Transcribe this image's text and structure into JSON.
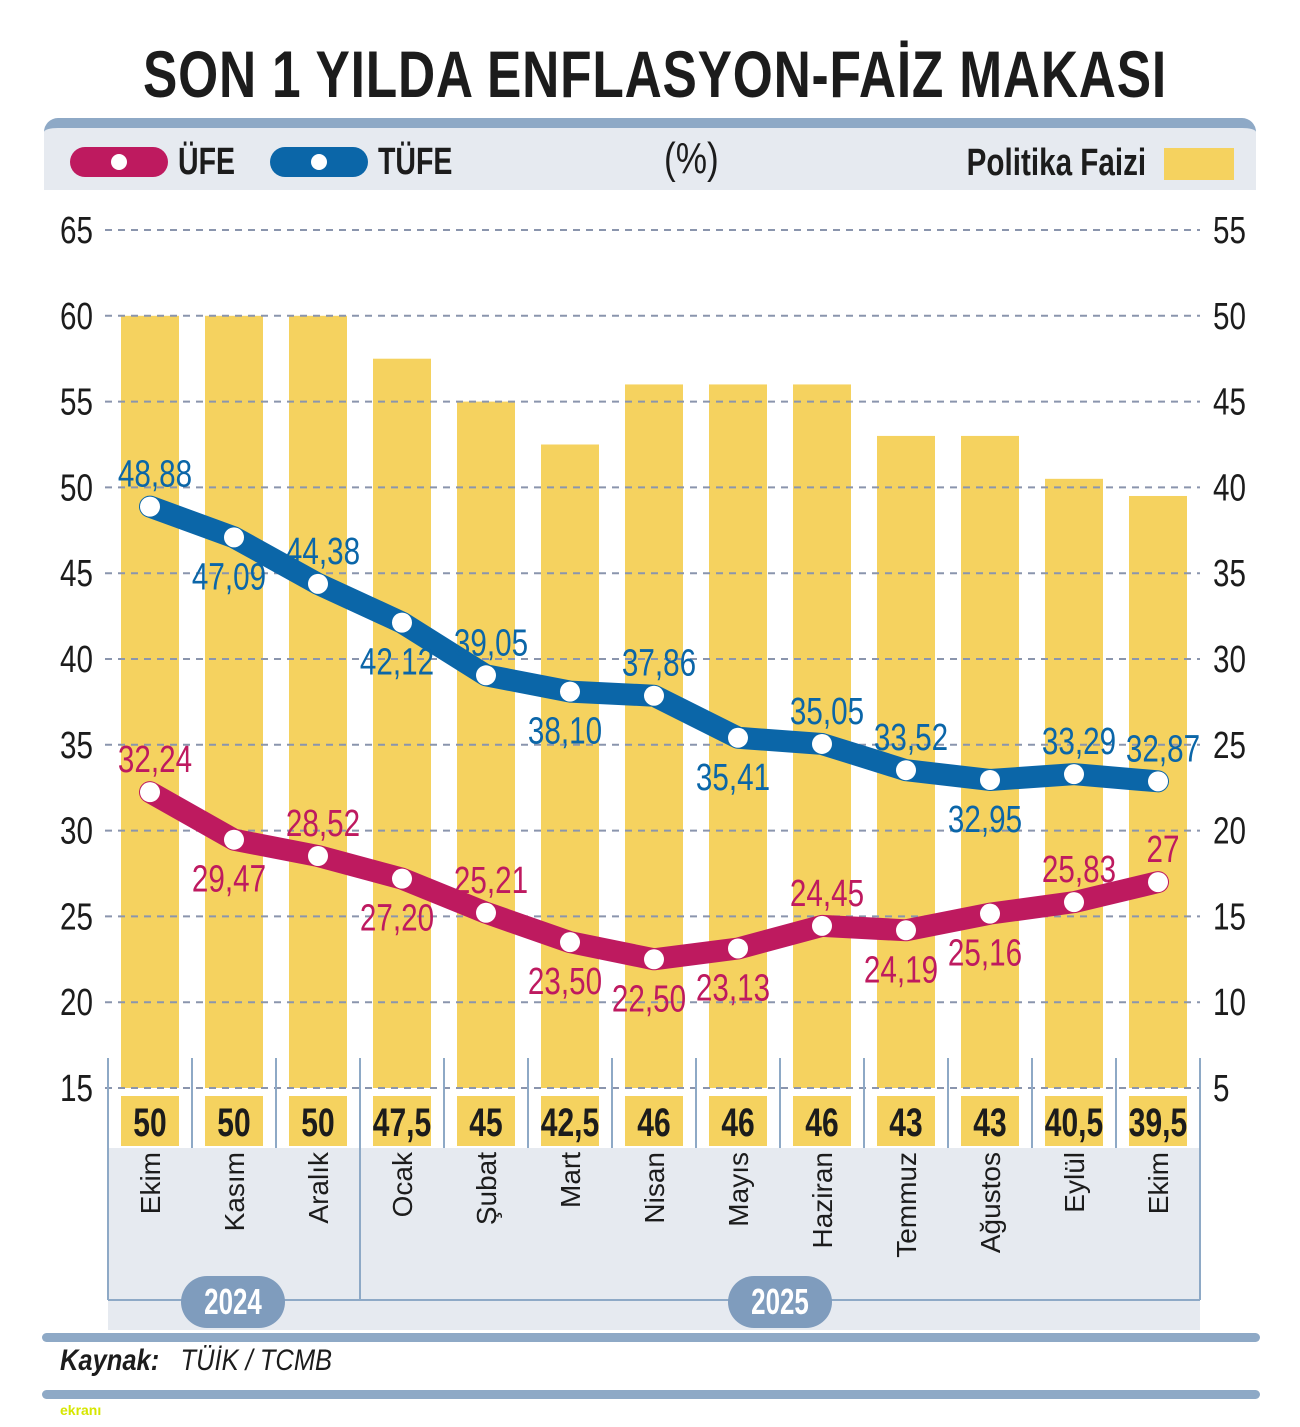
{
  "title": "SON 1 YILDA ENFLASYON-FAİZ MAKASI",
  "legend": {
    "ufe_label": "ÜFE",
    "tufe_label": "TÜFE",
    "unit": "(%)",
    "policy_rate_label": "Politika Faizi"
  },
  "colors": {
    "ufe": "#be1a5f",
    "tufe": "#0b66a8",
    "policy_rate": "#f5d25f",
    "axis_text": "#1c1c1c",
    "frame": "#8ea9c6",
    "panel": "#e6eaf0"
  },
  "source": {
    "label": "Kaynak:",
    "value": "TÜİK / TCMB"
  },
  "watermark": "ekranı",
  "chart_data": {
    "type": "bar+line",
    "title": "SON 1 YILDA ENFLASYON-FAİZ MAKASI",
    "unit": "%",
    "categories": [
      "Ekim",
      "Kasım",
      "Aralık",
      "Ocak",
      "Şubat",
      "Mart",
      "Nisan",
      "Mayıs",
      "Haziran",
      "Temmuz",
      "Ağustos",
      "Eylül",
      "Ekim"
    ],
    "year_groups": [
      {
        "label": "2024",
        "start": 0,
        "end": 2
      },
      {
        "label": "2025",
        "start": 3,
        "end": 12
      }
    ],
    "series": [
      {
        "name": "Politika Faizi",
        "type": "bar",
        "axis": "right",
        "values": [
          50,
          50,
          50,
          47.5,
          45,
          42.5,
          46,
          46,
          46,
          43,
          43,
          40.5,
          39.5
        ],
        "labels": [
          "50",
          "50",
          "50",
          "47,5",
          "45",
          "42,5",
          "46",
          "46",
          "46",
          "43",
          "43",
          "40,5",
          "39,5"
        ]
      },
      {
        "name": "TÜFE",
        "type": "line",
        "axis": "left",
        "values": [
          48.88,
          47.09,
          44.38,
          42.12,
          39.05,
          38.1,
          37.86,
          35.41,
          35.05,
          33.52,
          32.95,
          33.29,
          32.87
        ],
        "labels": [
          "48,88",
          "47,09",
          "44,38",
          "42,12",
          "39,05",
          "38,10",
          "37,86",
          "35,41",
          "35,05",
          "33,52",
          "32,95",
          "33,29",
          "32,87"
        ],
        "label_pos": [
          "above",
          "below",
          "above",
          "below",
          "above",
          "below",
          "above",
          "below",
          "above",
          "above",
          "below",
          "above",
          "above"
        ]
      },
      {
        "name": "ÜFE",
        "type": "line",
        "axis": "left",
        "values": [
          32.24,
          29.47,
          28.52,
          27.2,
          25.21,
          23.5,
          22.5,
          23.13,
          24.45,
          24.19,
          25.16,
          25.83,
          27
        ],
        "labels": [
          "32,24",
          "29,47",
          "28,52",
          "27,20",
          "25,21",
          "23,50",
          "22,50",
          "23,13",
          "24,45",
          "24,19",
          "25,16",
          "25,83",
          "27"
        ],
        "label_pos": [
          "above",
          "below",
          "above",
          "below",
          "above",
          "below",
          "below",
          "below",
          "above",
          "below",
          "below",
          "above",
          "above"
        ]
      }
    ],
    "left_axis": {
      "ticks": [
        65,
        60,
        55,
        50,
        45,
        40,
        35,
        30,
        25,
        20,
        15
      ],
      "range": [
        15,
        65
      ]
    },
    "right_axis": {
      "ticks": [
        55,
        50,
        45,
        40,
        35,
        30,
        25,
        20,
        15,
        10,
        5
      ],
      "range": [
        5,
        55
      ]
    },
    "grid": true,
    "legend_position": "top"
  }
}
